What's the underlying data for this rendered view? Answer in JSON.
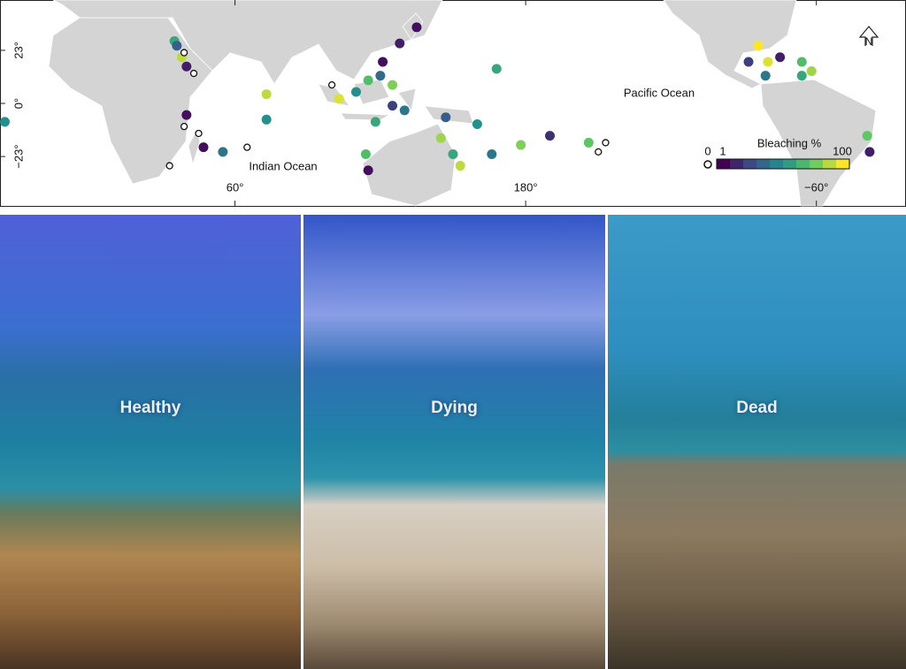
{
  "map": {
    "type": "scatter",
    "xlim": [
      -37,
      337
    ],
    "ylim": [
      -44.4,
      44.8
    ],
    "xticks": [
      {
        "value": 60,
        "label": "60°"
      },
      {
        "value": 180,
        "label": "180°"
      },
      {
        "value": -60,
        "label": "−60°"
      }
    ],
    "yticks": [
      {
        "value": 23,
        "label": "23°"
      },
      {
        "value": 0,
        "label": "0°"
      },
      {
        "value": -23,
        "label": "−23°"
      }
    ],
    "annotations": [
      "Indian Ocean",
      "Pacific Ocean"
    ],
    "compass": "N",
    "legend": {
      "title": "Bleaching %",
      "ticks": [
        0,
        1,
        100
      ]
    },
    "sites": {
      "lon": [
        35,
        38,
        39,
        40,
        43,
        36,
        40,
        39,
        47,
        45,
        33,
        55,
        65,
        73,
        73,
        100,
        103,
        110,
        115,
        120,
        121,
        125,
        125,
        118,
        130,
        128,
        135,
        114,
        115,
        145,
        150,
        153,
        147,
        160,
        166,
        178,
        190,
        206,
        210,
        168,
        213,
        -88,
        -80,
        -75,
        -66,
        -62,
        -81,
        -66,
        -84,
        -35,
        -39,
        -38
      ],
      "lat": [
        27,
        20,
        22,
        16,
        13,
        25,
        -5,
        -10,
        -19,
        -13,
        -27,
        -21,
        -19,
        4,
        -7,
        8,
        2,
        5,
        10,
        12,
        18,
        8,
        -1,
        -8,
        -3,
        26,
        33,
        -22,
        -29,
        -15,
        -22,
        -27,
        -6,
        -9,
        -22,
        -18,
        -14,
        -17,
        -21,
        15,
        -17,
        18,
        18,
        20,
        18,
        14,
        12,
        12,
        25,
        -8,
        -14,
        -21
      ],
      "bleaching": [
        60,
        90,
        0,
        10,
        0,
        30,
        5,
        0,
        5,
        0,
        0,
        40,
        0,
        90,
        50,
        0,
        95,
        50,
        70,
        35,
        5,
        80,
        20,
        60,
        40,
        10,
        5,
        70,
        5,
        85,
        60,
        90,
        30,
        50,
        40,
        80,
        15,
        75,
        0,
        60,
        0,
        20,
        95,
        10,
        70,
        85,
        40,
        60,
        100,
        50,
        75,
        10
      ]
    }
  },
  "photos": [
    {
      "label": "Healthy"
    },
    {
      "label": "Dying"
    },
    {
      "label": "Dead"
    }
  ]
}
